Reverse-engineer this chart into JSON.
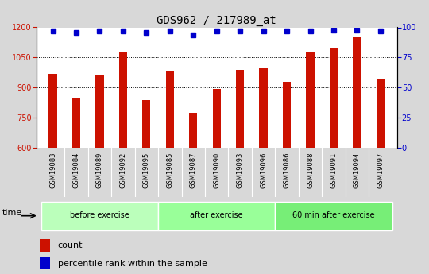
{
  "title": "GDS962 / 217989_at",
  "samples": [
    "GSM19083",
    "GSM19084",
    "GSM19089",
    "GSM19092",
    "GSM19095",
    "GSM19085",
    "GSM19087",
    "GSM19090",
    "GSM19093",
    "GSM19096",
    "GSM19086",
    "GSM19088",
    "GSM19091",
    "GSM19094",
    "GSM19097"
  ],
  "bar_values": [
    970,
    845,
    960,
    1075,
    840,
    985,
    775,
    895,
    990,
    995,
    930,
    1075,
    1100,
    1150,
    945
  ],
  "percentile_values": [
    97,
    96,
    97,
    97,
    96,
    97,
    94,
    97,
    97,
    97,
    97,
    97,
    98,
    98,
    97
  ],
  "bar_color": "#cc1100",
  "dot_color": "#0000cc",
  "ylim_left": [
    600,
    1200
  ],
  "ylim_right": [
    0,
    100
  ],
  "yticks_left": [
    600,
    750,
    900,
    1050,
    1200
  ],
  "yticks_right": [
    0,
    25,
    50,
    75,
    100
  ],
  "groups": [
    {
      "label": "before exercise",
      "start": 0,
      "end": 5,
      "color": "#bbffbb"
    },
    {
      "label": "after exercise",
      "start": 5,
      "end": 10,
      "color": "#99ff99"
    },
    {
      "label": "60 min after exercise",
      "start": 10,
      "end": 15,
      "color": "#77ee77"
    }
  ],
  "legend_count_label": "count",
  "legend_pct_label": "percentile rank within the sample",
  "time_label": "time",
  "fig_bg_color": "#d8d8d8",
  "plot_bg_color": "#ffffff",
  "xtick_bg_color": "#c0c0c0",
  "grid_color": "#000000",
  "title_fontsize": 10,
  "tick_fontsize": 7,
  "label_fontsize": 8,
  "bar_width": 0.35
}
